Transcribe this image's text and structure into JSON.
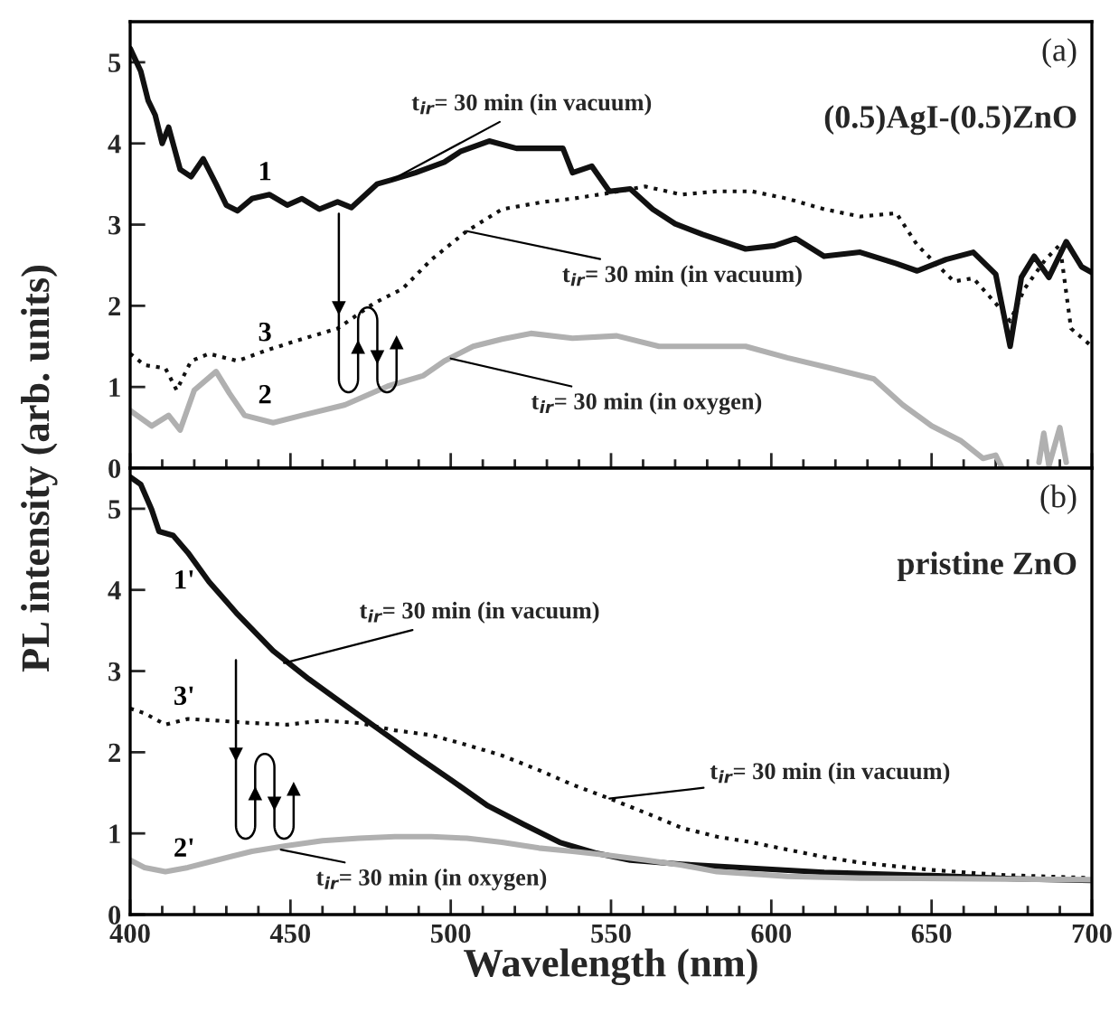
{
  "chart_data": [
    {
      "type": "line",
      "ylabel": "PL intensity (arb. units)",
      "xlim": [
        400,
        700
      ],
      "ylim": [
        0,
        5.5
      ],
      "xticks": [
        400,
        {
          "value": 410,
          "label": null
        },
        {
          "value": 420,
          "label": null
        },
        {
          "value": 430,
          "label": null
        },
        {
          "value": 440,
          "label": null
        },
        450,
        {
          "value": 460,
          "label": null
        },
        {
          "value": 470,
          "label": null
        },
        {
          "value": 480,
          "label": null
        },
        {
          "value": 490,
          "label": null
        },
        500,
        {
          "value": 510,
          "label": null
        },
        {
          "value": 520,
          "label": null
        },
        {
          "value": 530,
          "label": null
        },
        {
          "value": 540,
          "label": null
        },
        550,
        {
          "value": 560,
          "label": null
        },
        {
          "value": 570,
          "label": null
        },
        {
          "value": 580,
          "label": null
        },
        {
          "value": 590,
          "label": null
        },
        600,
        {
          "value": 610,
          "label": null
        },
        {
          "value": 620,
          "label": null
        },
        {
          "value": 630,
          "label": null
        },
        {
          "value": 640,
          "label": null
        },
        650,
        {
          "value": 660,
          "label": null
        },
        {
          "value": 670,
          "label": null
        },
        {
          "value": 680,
          "label": null
        },
        {
          "value": 690,
          "label": null
        },
        700
      ],
      "yticks": [
        0,
        1,
        2,
        3,
        4,
        5
      ],
      "tick_labels": "y",
      "grid": false,
      "legend": false,
      "series": [
        {
          "name": "1",
          "color": "#111111",
          "line_style": "solid",
          "x": [
            400,
            403.3,
            405.6,
            407.8,
            410,
            412,
            415.6,
            419,
            422.8,
            426.8,
            430,
            433.5,
            438,
            443.5,
            449,
            453.6,
            459,
            464.7,
            469,
            477,
            481.5,
            489,
            498,
            503,
            512,
            520.5,
            529.5,
            535,
            538,
            544,
            549.5,
            556,
            563,
            570,
            578.6,
            592,
            601,
            607.6,
            616.5,
            627.7,
            639,
            645.5,
            654.5,
            663,
            670,
            674.5,
            678,
            682,
            686.6,
            692,
            696.8,
            700
          ],
          "values": [
            5.17,
            4.89,
            4.53,
            4.35,
            4.0,
            4.2,
            3.68,
            3.59,
            3.81,
            3.5,
            3.24,
            3.17,
            3.32,
            3.37,
            3.24,
            3.32,
            3.19,
            3.28,
            3.21,
            3.5,
            3.55,
            3.64,
            3.77,
            3.9,
            4.03,
            3.94,
            3.94,
            3.94,
            3.64,
            3.72,
            3.41,
            3.44,
            3.19,
            3.01,
            2.88,
            2.7,
            2.74,
            2.83,
            2.61,
            2.66,
            2.52,
            2.43,
            2.57,
            2.66,
            2.39,
            1.5,
            2.35,
            2.61,
            2.35,
            2.79,
            2.48,
            2.41
          ]
        },
        {
          "name": "3",
          "color": "#111111",
          "line_style": "dotted",
          "x": [
            400,
            404.5,
            411,
            414.5,
            419,
            424.6,
            433.5,
            442.4,
            453.6,
            464.7,
            476,
            485,
            494,
            505,
            516,
            529,
            538,
            549.5,
            560.7,
            572,
            583,
            594,
            605,
            616.5,
            627.7,
            639,
            645.5,
            650,
            657,
            663,
            670,
            674.5,
            679,
            685.5,
            690,
            693.5,
            700
          ],
          "values": [
            1.41,
            1.27,
            1.23,
            0.96,
            1.32,
            1.41,
            1.32,
            1.45,
            1.59,
            1.72,
            2.03,
            2.21,
            2.57,
            2.92,
            3.19,
            3.28,
            3.32,
            3.39,
            3.47,
            3.37,
            3.41,
            3.41,
            3.32,
            3.19,
            3.1,
            3.14,
            2.75,
            2.57,
            2.3,
            2.34,
            2.03,
            1.81,
            2.21,
            2.57,
            2.75,
            1.72,
            1.5
          ]
        },
        {
          "name": "2",
          "color": "#b0b0b0",
          "line_style": "solid",
          "x": [
            400,
            406.7,
            412,
            415.6,
            420,
            426.8,
            431,
            435.7,
            444.6,
            453.6,
            467,
            480.4,
            491.5,
            498,
            507,
            516,
            525,
            538,
            551.8,
            565,
            578.6,
            592,
            605,
            618.7,
            632,
            641,
            650,
            659,
            666,
            670,
            672,
            678,
            683.5,
            685,
            686.6,
            690,
            692
          ],
          "values": [
            0.71,
            0.52,
            0.65,
            0.47,
            0.96,
            1.19,
            0.92,
            0.65,
            0.56,
            0.65,
            0.78,
            1.01,
            1.14,
            1.32,
            1.5,
            1.59,
            1.66,
            1.6,
            1.63,
            1.5,
            1.5,
            1.5,
            1.36,
            1.23,
            1.1,
            0.78,
            0.52,
            0.34,
            0.12,
            0.16,
            0,
            null,
            0.07,
            0.43,
            0.03,
            0.5,
            0.07
          ]
        }
      ],
      "annotations": [
        {
          "text": "t$_{ir}$= 30 min (in vacuum)",
          "x": 481.5,
          "y": 3.55
        },
        {
          "text": "t$_{ir}$= 30 min (in vacuum)",
          "x": 505,
          "y": 2.92
        },
        {
          "text": "t$_{ir}$= 30 min (in oxygen)",
          "x": 500,
          "y": 1.35
        },
        "(a)",
        "(0.5)AgI-(0.5)ZnO"
      ]
    },
    {
      "type": "line",
      "xlabel": "Wavelength (nm)",
      "xlim": [
        400,
        700
      ],
      "ylim": [
        0,
        5.5
      ],
      "xticks": [
        400,
        {
          "value": 410,
          "label": null
        },
        {
          "value": 420,
          "label": null
        },
        {
          "value": 430,
          "label": null
        },
        {
          "value": 440,
          "label": null
        },
        450,
        {
          "value": 460,
          "label": null
        },
        {
          "value": 470,
          "label": null
        },
        {
          "value": 480,
          "label": null
        },
        {
          "value": 490,
          "label": null
        },
        500,
        {
          "value": 510,
          "label": null
        },
        {
          "value": 520,
          "label": null
        },
        {
          "value": 530,
          "label": null
        },
        {
          "value": 540,
          "label": null
        },
        550,
        {
          "value": 560,
          "label": null
        },
        {
          "value": 570,
          "label": null
        },
        {
          "value": 580,
          "label": null
        },
        {
          "value": 590,
          "label": null
        },
        600,
        {
          "value": 610,
          "label": null
        },
        {
          "value": 620,
          "label": null
        },
        {
          "value": 630,
          "label": null
        },
        {
          "value": 640,
          "label": null
        },
        650,
        {
          "value": 660,
          "label": null
        },
        {
          "value": 670,
          "label": null
        },
        {
          "value": 680,
          "label": null
        },
        {
          "value": 690,
          "label": null
        },
        700
      ],
      "yticks": [
        0,
        1,
        2,
        3,
        4,
        5
      ],
      "grid": false,
      "legend": false,
      "series": [
        {
          "name": "1'",
          "color": "#111111",
          "line_style": "solid",
          "x": [
            400,
            403.3,
            406.7,
            409,
            413.4,
            418,
            424.6,
            433.5,
            444.6,
            455.8,
            467,
            478,
            489,
            500.4,
            511.6,
            522.8,
            534,
            545,
            556,
            572,
            594,
            616.5,
            650,
            677,
            700
          ],
          "values": [
            5.39,
            5.3,
            4.99,
            4.72,
            4.67,
            4.46,
            4.1,
            3.7,
            3.25,
            2.9,
            2.58,
            2.27,
            1.96,
            1.65,
            1.34,
            1.11,
            0.89,
            0.76,
            0.67,
            0.62,
            0.57,
            0.52,
            0.48,
            0.44,
            0.42
          ]
        },
        {
          "name": "3'",
          "color": "#111111",
          "line_style": "dotted",
          "x": [
            400,
            404.5,
            411,
            418,
            427,
            438,
            449,
            460,
            471.4,
            482.6,
            494,
            505,
            516,
            527.5,
            538,
            549.5,
            561,
            572,
            583,
            594,
            605,
            616.5,
            627.7,
            650,
            671,
            700
          ],
          "values": [
            2.54,
            2.48,
            2.34,
            2.41,
            2.39,
            2.36,
            2.34,
            2.39,
            2.36,
            2.27,
            2.21,
            2.09,
            1.96,
            1.78,
            1.6,
            1.43,
            1.25,
            1.07,
            0.96,
            0.89,
            0.8,
            0.71,
            0.64,
            0.55,
            0.49,
            0.45
          ]
        },
        {
          "name": "2'",
          "color": "#b0b0b0",
          "line_style": "solid",
          "x": [
            400,
            404.5,
            411,
            418,
            427,
            438,
            449,
            460,
            471.4,
            482.6,
            494,
            505,
            516,
            527.5,
            538,
            549.5,
            561,
            572,
            583,
            605,
            627.7,
            700
          ],
          "values": [
            0.67,
            0.58,
            0.53,
            0.58,
            0.67,
            0.78,
            0.85,
            0.91,
            0.94,
            0.96,
            0.96,
            0.94,
            0.89,
            0.82,
            0.78,
            0.73,
            0.67,
            0.61,
            0.53,
            0.47,
            0.45,
            0.43
          ]
        }
      ],
      "annotations": [
        {
          "text": "t$_{ir}$= 30 min (in vacuum)",
          "x": 448,
          "y": 3.1
        },
        {
          "text": "t$_{ir}$= 30 min (in vacuum)",
          "x": 549.5,
          "y": 1.43
        },
        {
          "text": "t$_{ir}$= 30 min (in oxygen)",
          "x": 447,
          "y": 0.8
        },
        "(b)",
        "pristine ZnO"
      ]
    }
  ]
}
